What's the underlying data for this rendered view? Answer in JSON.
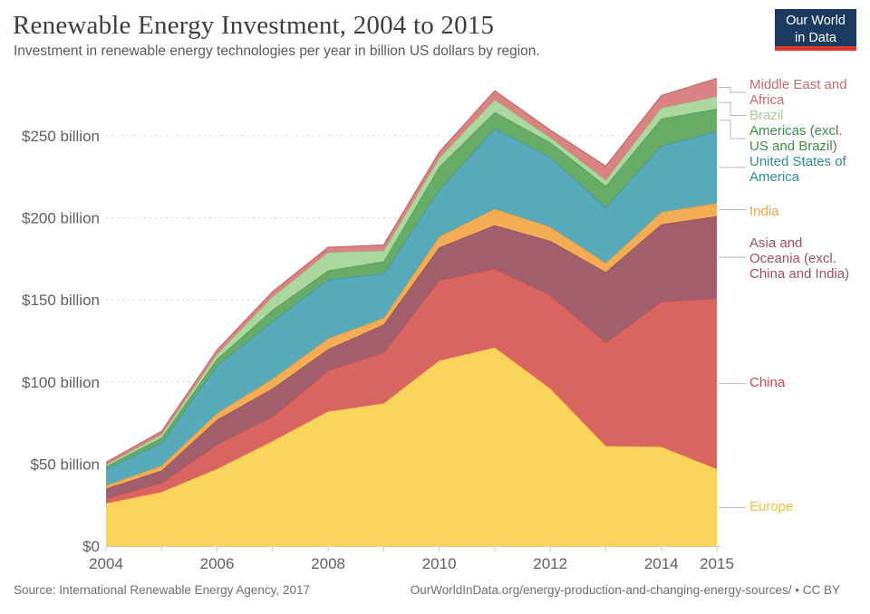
{
  "header": {
    "title": "Renewable Energy Investment, 2004 to 2015",
    "subtitle": "Investment in renewable energy technologies per year in billion US dollars by region.",
    "logo": {
      "line1": "Our World",
      "line2": "in Data",
      "bg_color": "#1a3a5f",
      "accent_color": "#dc3a2c"
    }
  },
  "footer": {
    "source": "Source: International Renewable Energy Agency, 2017",
    "url": "OurWorldInData.org/energy-production-and-changing-energy-sources/",
    "separator": "•",
    "license": "CC BY"
  },
  "chart_data": {
    "type": "area",
    "stacked": true,
    "title": "Renewable Energy Investment, 2004 to 2015",
    "xlabel": "",
    "ylabel": "billion US dollars per year",
    "x": [
      2004,
      2005,
      2006,
      2007,
      2008,
      2009,
      2010,
      2011,
      2012,
      2013,
      2014,
      2015
    ],
    "x_shown_labels": [
      2004,
      2006,
      2008,
      2010,
      2012,
      2014,
      2015
    ],
    "ylim": [
      0,
      290
    ],
    "yticks": [
      {
        "value": 0,
        "label": "$0"
      },
      {
        "value": 50,
        "label": "$50 billion"
      },
      {
        "value": 100,
        "label": "$100 billion"
      },
      {
        "value": 150,
        "label": "$150 billion"
      },
      {
        "value": 200,
        "label": "$200 billion"
      },
      {
        "value": 250,
        "label": "$250 billion"
      }
    ],
    "grid": "dashed-horizontal",
    "legend_position": "right",
    "axis_color": "#cccccc",
    "grid_color": "#cdcdcd",
    "connector_color": "#b8b8b8",
    "series": [
      {
        "key": "europe",
        "name": "Europe",
        "legend_lines": [
          "Europe"
        ],
        "fill": "#FBD45C",
        "line": "#E9BC44",
        "label_color": "#F3C13D",
        "values": [
          26,
          33,
          47,
          64,
          82,
          87,
          113,
          121,
          96,
          61,
          60.5,
          47
        ]
      },
      {
        "key": "china",
        "name": "China",
        "legend_lines": [
          "China"
        ],
        "fill": "#D96561",
        "line": "#C44F4C",
        "label_color": "#D8434E",
        "values": [
          3,
          5.5,
          15,
          15,
          25,
          31,
          49,
          48,
          57,
          63,
          88.5,
          104
        ]
      },
      {
        "key": "asia_oceania",
        "name": "Asia and Oceania (excl. China and India)",
        "legend_lines": [
          "Asia and",
          "Oceania (excl.",
          "China and India)"
        ],
        "fill": "#A05F6B",
        "line": "#8E4B59",
        "label_color": "#A04E5E",
        "values": [
          6,
          7.5,
          15,
          17,
          13,
          17,
          20,
          26.5,
          33,
          43,
          47,
          50
        ]
      },
      {
        "key": "india",
        "name": "India",
        "legend_lines": [
          "India"
        ],
        "fill": "#F4AC55",
        "line": "#E9992F",
        "label_color": "#F1A43A",
        "values": [
          2,
          3,
          4,
          6,
          6.5,
          4,
          6.5,
          10,
          8.5,
          5.5,
          7.5,
          8
        ]
      },
      {
        "key": "united_states",
        "name": "United States of America",
        "legend_lines": [
          "United States of",
          "America"
        ],
        "fill": "#58A9B9",
        "line": "#3E93A6",
        "label_color": "#2E8A9A",
        "values": [
          10,
          14,
          29,
          35,
          36,
          27,
          28.5,
          49,
          42.5,
          34,
          40.5,
          43.5
        ]
      },
      {
        "key": "americas",
        "name": "Americas (excl. US and Brazil)",
        "legend_lines": [
          "Americas (excl.",
          "US and Brazil)"
        ],
        "fill": "#66AB66",
        "line": "#4F9850",
        "label_color": "#3D8E43",
        "values": [
          1.5,
          3,
          4,
          7,
          5.5,
          7.5,
          14,
          10,
          9,
          13,
          16.5,
          14
        ]
      },
      {
        "key": "brazil",
        "name": "Brazil",
        "legend_lines": [
          "Brazil"
        ],
        "fill": "#ACD8A0",
        "line": "#90C581",
        "label_color": "#A5CE93",
        "values": [
          1,
          2,
          3,
          8,
          11,
          6.5,
          5.5,
          7.5,
          3,
          3.5,
          6.5,
          7.5
        ]
      },
      {
        "key": "middle_east_africa",
        "name": "Middle East and Africa",
        "legend_lines": [
          "Middle East and",
          "Africa"
        ],
        "fill": "#D98383",
        "line": "#C96A6A",
        "label_color": "#C86A6A",
        "values": [
          1.5,
          2,
          2.5,
          3,
          3,
          3.5,
          3.5,
          5.5,
          4.5,
          8.5,
          7.5,
          11
        ]
      }
    ]
  }
}
